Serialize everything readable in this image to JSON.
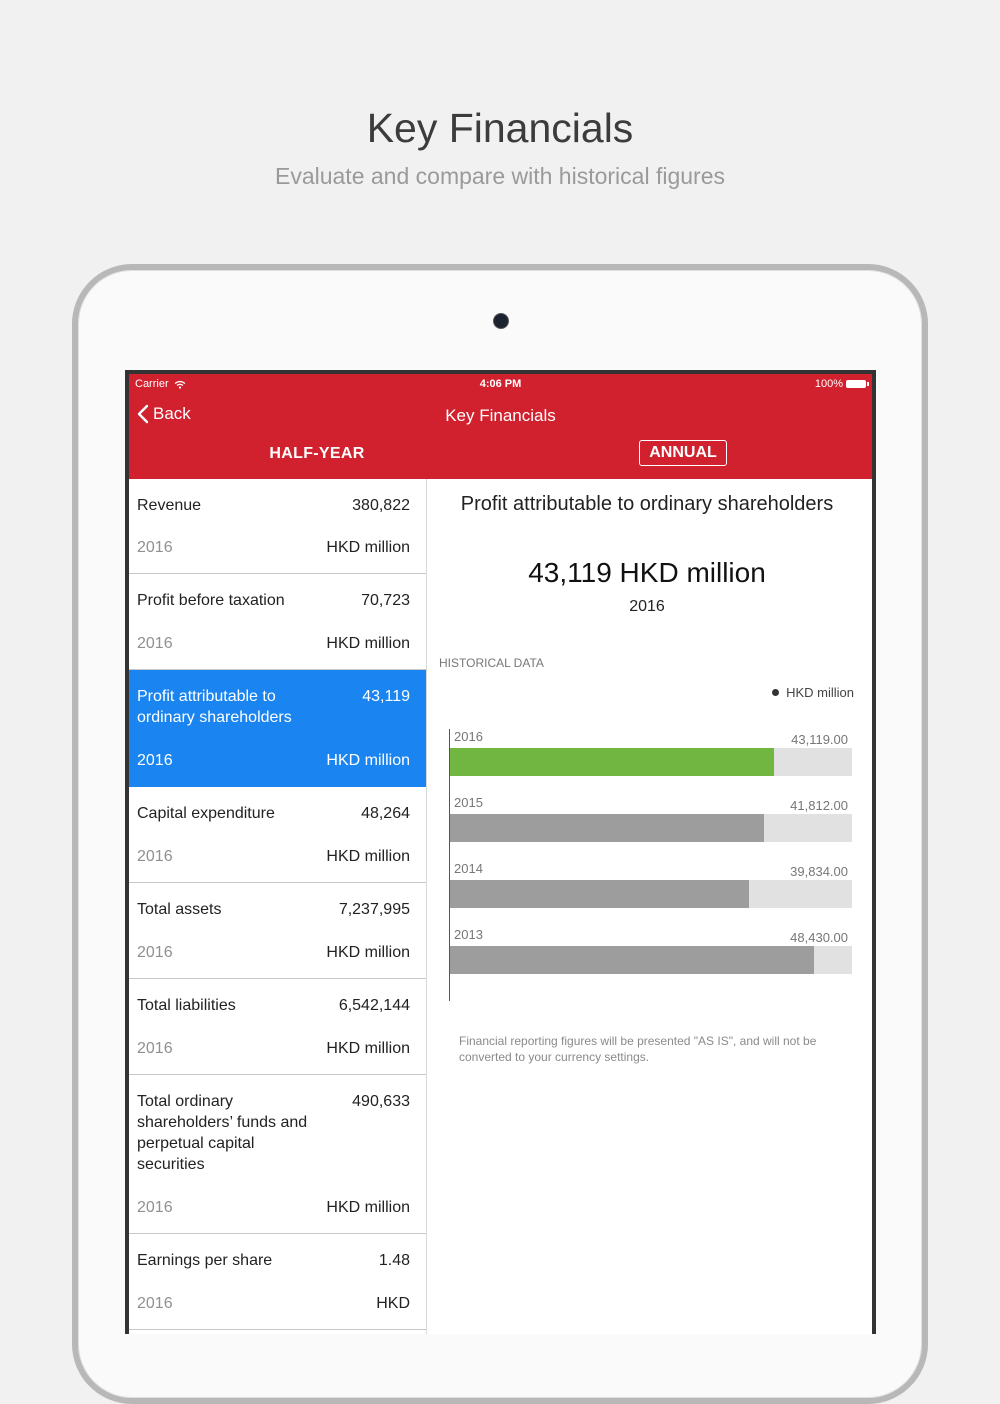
{
  "hero": {
    "title": "Key Financials",
    "subtitle": "Evaluate and compare with historical figures"
  },
  "status_bar": {
    "carrier": "Carrier",
    "time": "4:06 PM",
    "battery": "100%",
    "wifi_icon": "wifi-icon",
    "battery_icon": "battery-icon"
  },
  "nav": {
    "back_label": "Back",
    "title": "Key Financials"
  },
  "tabs": {
    "half_year": "HALF-YEAR",
    "annual": "ANNUAL",
    "selected": "ANNUAL"
  },
  "list": {
    "items": [
      {
        "name": "Revenue",
        "value": "380,822",
        "year": "2016",
        "unit": "HKD million"
      },
      {
        "name": "Profit before taxation",
        "value": "70,723",
        "year": "2016",
        "unit": "HKD million"
      },
      {
        "name": "Profit attributable to ordinary shareholders",
        "value": "43,119",
        "year": "2016",
        "unit": "HKD million"
      },
      {
        "name": "Capital expenditure",
        "value": "48,264",
        "year": "2016",
        "unit": "HKD million"
      },
      {
        "name": "Total assets",
        "value": "7,237,995",
        "year": "2016",
        "unit": "HKD million"
      },
      {
        "name": "Total liabilities",
        "value": "6,542,144",
        "year": "2016",
        "unit": "HKD million"
      },
      {
        "name": "Total ordinary shareholders’ funds and perpetual capital securities",
        "value": "490,633",
        "year": "2016",
        "unit": "HKD million"
      },
      {
        "name": "Earnings per share",
        "value": "1.48",
        "year": "2016",
        "unit": "HKD"
      }
    ]
  },
  "detail": {
    "title": "Profit attributable to ordinary shareholders",
    "value": "43,119 HKD million",
    "year": "2016",
    "historical_label": "HISTORICAL DATA",
    "disclaimer": "Financial reporting figures will be presented \"AS IS\", and will not be converted to your currency settings."
  },
  "colors": {
    "header": "#d1202e",
    "selected_row": "#1a84f0",
    "current_bar": "#71b640",
    "past_bar": "#9d9d9d",
    "bar_track": "#e1e1e1"
  },
  "chart_data": {
    "type": "bar",
    "orientation": "horizontal",
    "legend": "HKD million",
    "legend_position": "top-right",
    "categories": [
      "2016",
      "2015",
      "2014",
      "2013"
    ],
    "values": [
      43119.0,
      41812.0,
      39834.0,
      48430.0
    ],
    "value_labels": [
      "43,119.00",
      "41,812.00",
      "39,834.00",
      "48,430.00"
    ],
    "xlim": [
      0,
      53500
    ],
    "highlight": "2016"
  }
}
